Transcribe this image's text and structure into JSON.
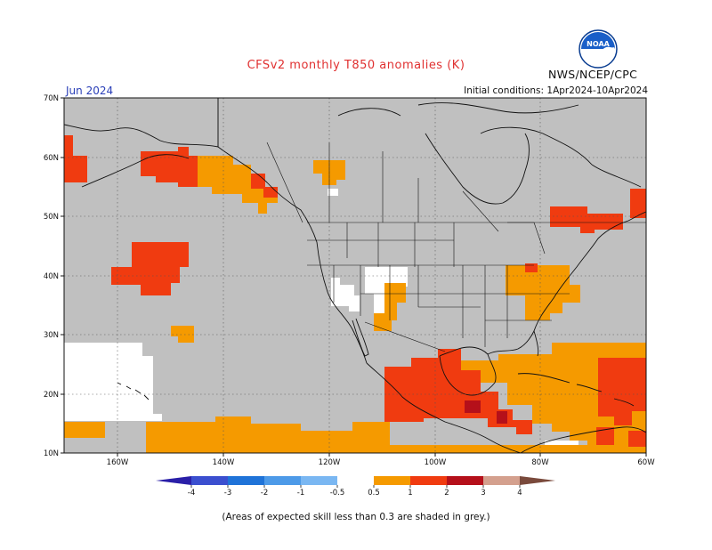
{
  "map": {
    "title": "CFSv2 monthly T850 anomalies (K)",
    "organization": "NWS/NCEP/CPC",
    "logo_text": "NOAA",
    "valid_month": "Jun 2024",
    "initial_conditions": "Initial conditions: 1Apr2024-10Apr2024",
    "caption": "(Areas of expected skill less than 0.3 are shaded in grey.)",
    "lon_labels": [
      "160W",
      "140W",
      "120W",
      "100W",
      "80W",
      "60W"
    ],
    "lat_labels": [
      "70N",
      "60N",
      "50N",
      "40N",
      "30N",
      "20N",
      "10N"
    ]
  },
  "colorbar": {
    "labels": [
      "-4",
      "-3",
      "-2",
      "-1",
      "-0.5",
      "0.5",
      "1",
      "2",
      "3",
      "4"
    ],
    "colors": [
      "#2a1fa8",
      "#3b4fcf",
      "#1f73d8",
      "#4d9ae8",
      "#7ab7f2",
      "#ffffff",
      "#f59a00",
      "#f03b10",
      "#b5101a",
      "#d4a08e",
      "#7a4a3c"
    ]
  },
  "colors": {
    "skill_grey": "#c0c0c0",
    "anomaly_0_5_1": "#f59a00",
    "anomaly_1_2": "#f03b10",
    "anomaly_2_3": "#b5101a",
    "title": "#e03030",
    "month": "#2a3fb8"
  }
}
